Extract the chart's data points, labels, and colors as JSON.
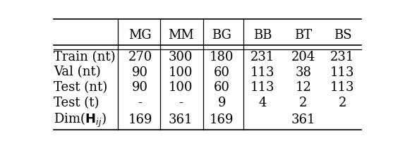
{
  "col_headers": [
    "",
    "MG",
    "MM",
    "BG",
    "BB",
    "BT",
    "BS"
  ],
  "rows": [
    [
      "Train (nt)",
      "270",
      "300",
      "180",
      "231",
      "204",
      "231"
    ],
    [
      "Val (nt)",
      "90",
      "100",
      "60",
      "113",
      "38",
      "113"
    ],
    [
      "Test (nt)",
      "90",
      "100",
      "60",
      "113",
      "12",
      "113"
    ],
    [
      "Test (t)",
      "-",
      "-",
      "9",
      "4",
      "2",
      "2"
    ],
    [
      "Dim($\\mathbf{H}_{ij}$)",
      "169",
      "361",
      "169",
      "",
      "361",
      ""
    ]
  ],
  "vline_after_cols": [
    0,
    1,
    2,
    3
  ],
  "bg_color": "#ffffff",
  "font_size": 13
}
